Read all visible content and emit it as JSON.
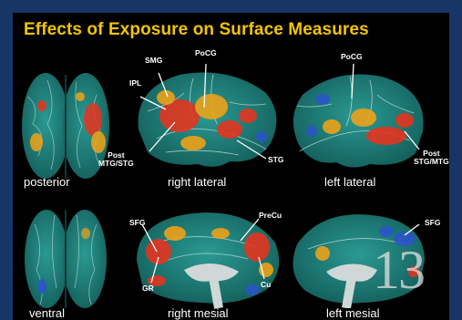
{
  "title": "Effects of Exposure on Surface Measures",
  "views": {
    "posterior": "posterior",
    "right_lateral": "right lateral",
    "left_lateral": "left lateral",
    "ventral": "ventral",
    "right_mesial": "right mesial",
    "left_mesial": "left mesial"
  },
  "region_labels": {
    "smg": "SMG",
    "pocg_right": "PoCG",
    "ipl": "IPL",
    "post_mtg_stg": "Post\nMTG/STG",
    "stg": "STG",
    "pocg_left": "PoCG",
    "post_stg_mtg": "Post\nSTG/MTG",
    "sfg_right_mesial": "SFG",
    "precu": "PreCu",
    "gr": "GR",
    "cu": "Cu",
    "sfg_left_mesial": "SFG"
  },
  "page_number": "13",
  "colors": {
    "title": "#f2c500",
    "border": "#173566",
    "background": "#000000",
    "brain_base": "#1f8a86",
    "hot": "#e8331d",
    "warm": "#f2a316",
    "cool": "#2b54c9"
  }
}
